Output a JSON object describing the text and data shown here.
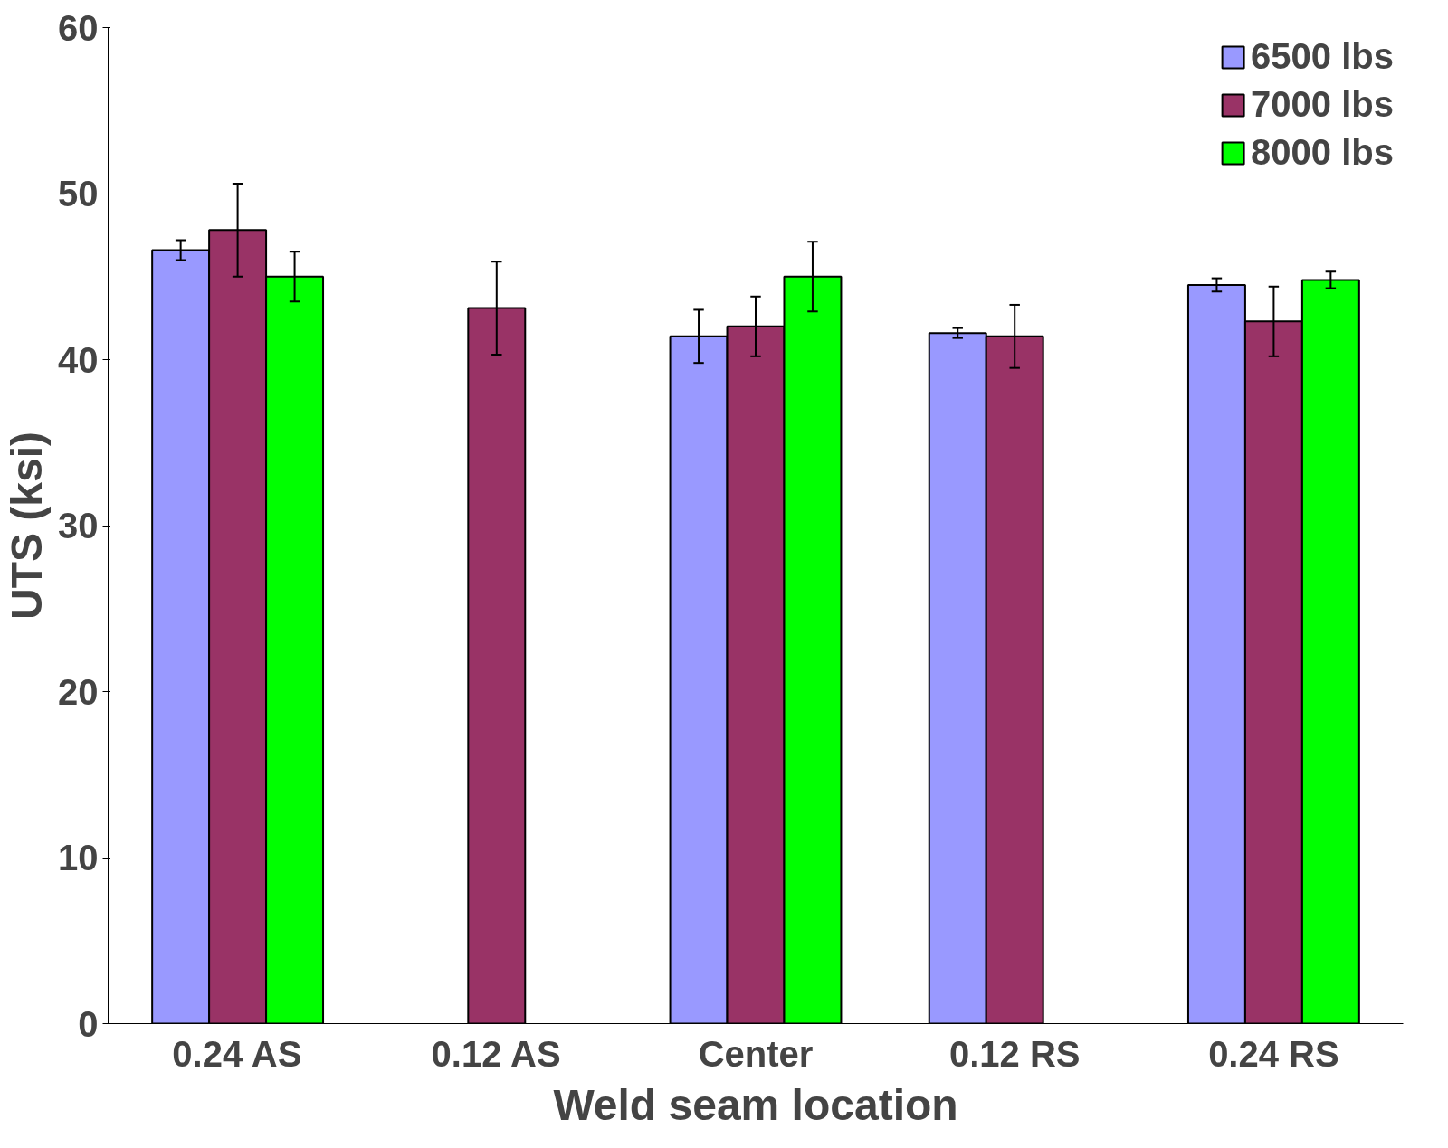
{
  "chart_data": {
    "type": "bar",
    "xlabel": "Weld seam location",
    "ylabel": "UTS (ksi)",
    "categories": [
      "0.24 AS",
      "0.12 AS",
      "Center",
      "0.12 RS",
      "0.24 RS"
    ],
    "series": [
      {
        "name": "6500 lbs",
        "color": "#9999ff",
        "values": [
          46.6,
          null,
          41.4,
          41.6,
          44.5
        ],
        "errors": [
          0.6,
          null,
          1.6,
          0.3,
          0.4
        ]
      },
      {
        "name": "7000 lbs",
        "color": "#993366",
        "values": [
          47.8,
          43.1,
          42.0,
          41.4,
          42.3
        ],
        "errors": [
          2.8,
          2.8,
          1.8,
          1.9,
          2.1
        ]
      },
      {
        "name": "8000 lbs",
        "color": "#00ff00",
        "values": [
          45.0,
          null,
          45.0,
          null,
          44.8
        ],
        "errors": [
          1.5,
          null,
          2.1,
          null,
          0.5
        ]
      }
    ],
    "ylim": [
      0,
      60
    ],
    "yticks": [
      0,
      10,
      20,
      30,
      40,
      50,
      60
    ],
    "grid": false,
    "legend": "top right"
  }
}
